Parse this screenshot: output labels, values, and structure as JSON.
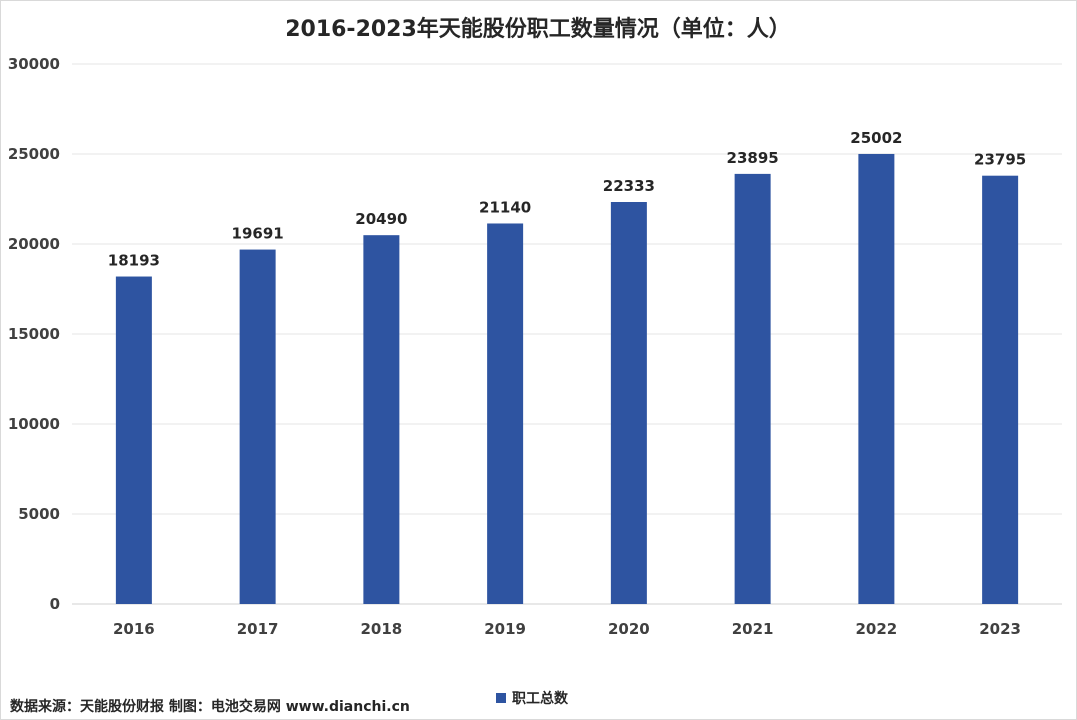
{
  "chart_data": {
    "type": "bar",
    "title": "2016-2023年天能股份职工数量情况（单位：人）",
    "categories": [
      "2016",
      "2017",
      "2018",
      "2019",
      "2020",
      "2021",
      "2022",
      "2023"
    ],
    "series": [
      {
        "name": "职工总数",
        "values": [
          18193,
          19691,
          20490,
          21140,
          22333,
          23895,
          25002,
          23795
        ]
      }
    ],
    "ylim": [
      0,
      30000
    ],
    "yticks": [
      0,
      5000,
      10000,
      15000,
      20000,
      25000,
      30000
    ],
    "grid": true,
    "legend": "bottom",
    "bar_color": "#2e54a1"
  },
  "footer": {
    "source": "数据来源：天能股份财报  制图：电池交易网 www.dianchi.cn"
  }
}
